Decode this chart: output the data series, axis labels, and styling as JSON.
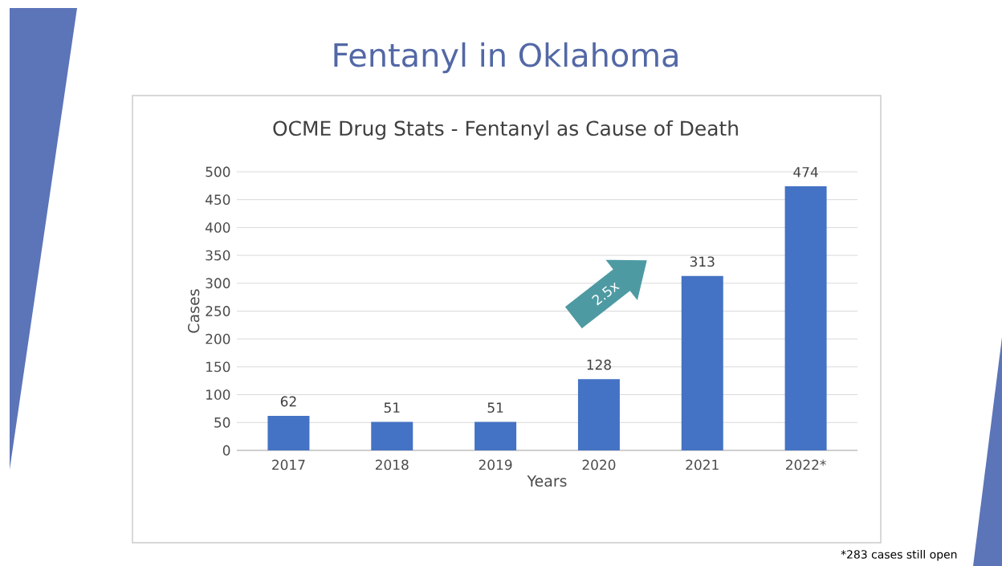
{
  "chart_data": {
    "type": "bar",
    "title": "Fentanyl in Oklahoma",
    "subtitle": "OCME Drug Stats - Fentanyl as Cause of Death",
    "xlabel": "Years",
    "ylabel": "Cases",
    "categories": [
      "2017",
      "2018",
      "2019",
      "2020",
      "2021",
      "2022*"
    ],
    "values": [
      62,
      51,
      51,
      128,
      313,
      474
    ],
    "color": "#4472c4",
    "ylim": [
      0,
      500
    ],
    "yticks": [
      0,
      50,
      100,
      150,
      200,
      250,
      300,
      350,
      400,
      450,
      500
    ],
    "grid": "y",
    "data_labels": true,
    "annotations": [
      "2.5x",
      "*283 cases still open"
    ]
  }
}
